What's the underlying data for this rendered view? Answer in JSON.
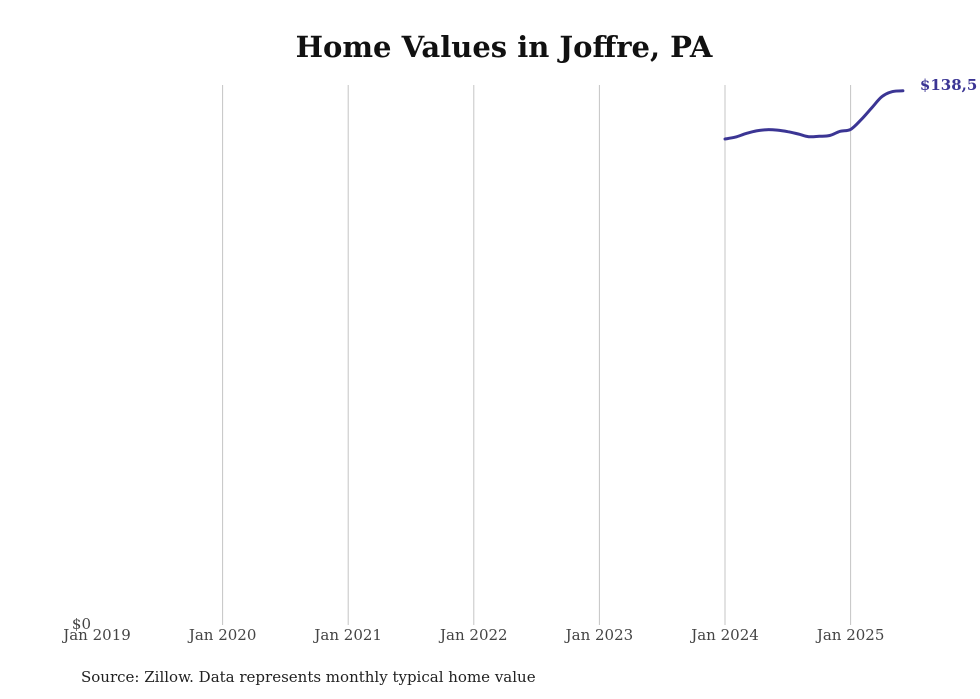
{
  "chart_data": {
    "type": "line",
    "title": "Home Values in Joffre, PA",
    "xlabel": "",
    "ylabel": "",
    "x_tick_labels": [
      "Jan 2019",
      "Jan 2020",
      "Jan 2021",
      "Jan 2022",
      "Jan 2023",
      "Jan 2024",
      "Jan 2025"
    ],
    "y_tick_labels": [
      "$0"
    ],
    "ylim": [
      0,
      140000
    ],
    "grid": "vertical",
    "line_color": "#3b3594",
    "end_label": "$138,5",
    "series": [
      {
        "x": [
          "2024-01",
          "2024-02",
          "2024-03",
          "2024-04",
          "2024-05",
          "2024-06",
          "2024-07",
          "2024-08",
          "2024-09",
          "2024-10",
          "2024-11",
          "2024-12",
          "2025-01",
          "2025-02",
          "2025-03",
          "2025-04",
          "2025-05",
          "2025-06"
        ],
        "values": [
          126000,
          126500,
          127400,
          128100,
          128400,
          128300,
          127900,
          127300,
          126600,
          126700,
          126900,
          128000,
          128500,
          131000,
          134000,
          137000,
          138300,
          138500
        ]
      }
    ]
  },
  "source_note": "Source: Zillow. Data represents monthly typical home value"
}
